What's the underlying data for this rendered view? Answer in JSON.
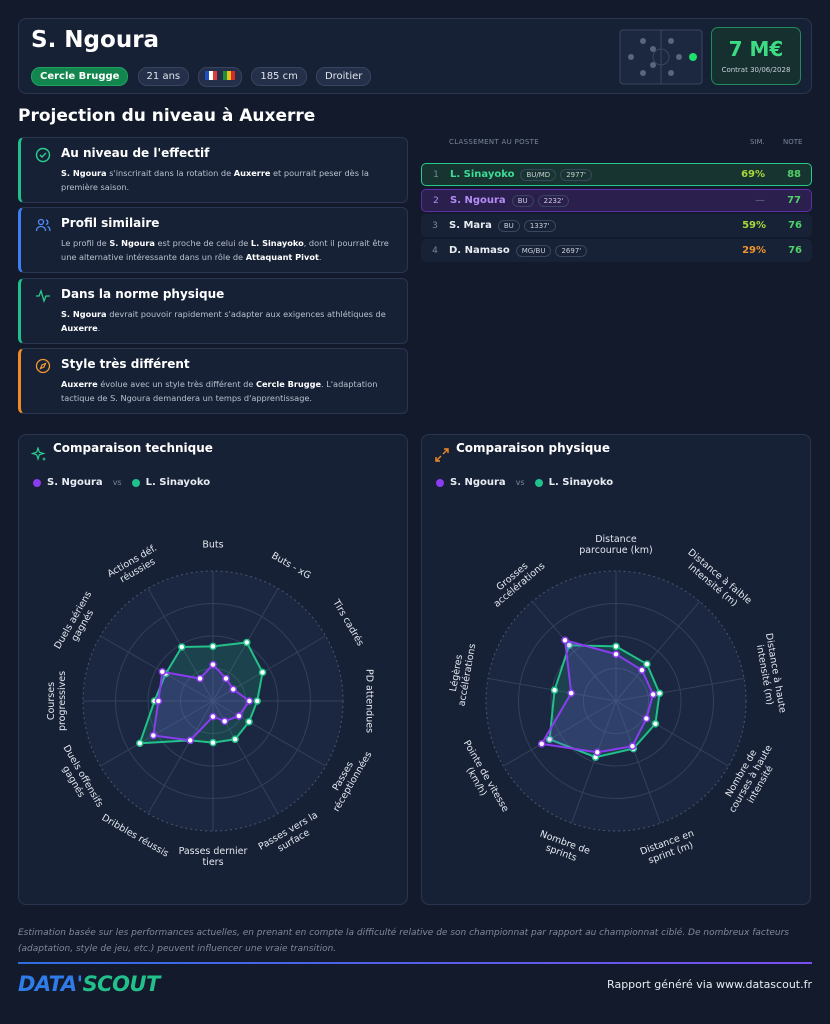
{
  "header": {
    "name": "S. Ngoura",
    "club": "Cercle Brugge",
    "age": "21 ans",
    "height": "185 cm",
    "foot": "Droitier",
    "value": "7 M€",
    "contract": "Contrat 30/06/2028"
  },
  "section_title": "Projection du niveau à Auxerre",
  "insights": [
    {
      "title": "Au niveau de l'effectif",
      "text": [
        "S. Ngoura",
        " s'inscrirait dans la rotation de ",
        "Auxerre",
        " et pourrait peser dès la première saison."
      ]
    },
    {
      "title": "Profil similaire",
      "text": [
        "Le profil de ",
        "S. Ngoura",
        " est proche de celui de ",
        "L. Sinayoko",
        ", dont il pourrait être une alternative intéressante dans un rôle de ",
        "Attaquant Pivot",
        "."
      ]
    },
    {
      "title": "Dans la norme physique",
      "text": [
        "S. Ngoura",
        " devrait pouvoir rapidement s'adapter aux exigences athlétiques de ",
        "Auxerre",
        "."
      ]
    },
    {
      "title": "Style très différent",
      "text": [
        "Auxerre",
        " évolue avec un style très différent de ",
        "Cercle Brugge",
        ". L'adaptation tactique de S. Ngoura demandera un temps d'apprentissage."
      ]
    }
  ],
  "ranking": {
    "header": [
      "CLASSEMENT AU POSTE",
      "SIM.",
      "NOTE"
    ],
    "rows": [
      [
        "1",
        "L. Sinayoko",
        "BU/MD",
        "2977'",
        "69%",
        "88"
      ],
      [
        "2",
        "S. Ngoura",
        "BU",
        "2232'",
        "—",
        "77"
      ],
      [
        "3",
        "S. Mara",
        "BU",
        "1337'",
        "59%",
        "76"
      ],
      [
        "4",
        "D. Namaso",
        "MG/BU",
        "2697'",
        "29%",
        "76"
      ]
    ]
  },
  "chart_data": [
    {
      "type": "radar",
      "title": "Comparaison technique",
      "vs": "vs",
      "categories": [
        "Buts",
        "Buts - xG",
        "Tirs cadrés",
        "PD attendues",
        "Passes réceptionnées",
        "Passes vers la surface",
        "Passes dernier tiers",
        "Dribbles réussis",
        "Duels offensifs gagnés",
        "Courses progressives",
        "Duels aériens gagnés",
        "Actions déf. réussies"
      ],
      "series": [
        {
          "name": "S. Ngoura",
          "color": "#8b3cf0",
          "values": [
            28,
            20,
            18,
            28,
            23,
            18,
            12,
            35,
            53,
            42,
            45,
            20
          ]
        },
        {
          "name": "L. Sinayoko",
          "color": "#22c08a",
          "values": [
            42,
            52,
            44,
            34,
            32,
            34,
            32,
            35,
            65,
            45,
            42,
            48
          ]
        }
      ],
      "rlim": [
        0,
        100
      ],
      "rticks": [
        25,
        50,
        75,
        100
      ]
    },
    {
      "type": "radar",
      "title": "Comparaison physique",
      "vs": "vs",
      "categories": [
        "Distance parcourue (km)",
        "Distance à faible intensité (m)",
        "Distance à haute intensité (m)",
        "Nombre de courses à haute intensité",
        "Distance en sprint (m)",
        "Nombre de sprints",
        "Pointe de vitesse (km/h)",
        "Légères accélérations",
        "Grosses accélérations"
      ],
      "series": [
        {
          "name": "S. Ngoura",
          "color": "#8b3cf0",
          "values": [
            36,
            31,
            29,
            27,
            37,
            42,
            66,
            35,
            61
          ]
        },
        {
          "name": "L. Sinayoko",
          "color": "#22c08a",
          "values": [
            42,
            37,
            34,
            35,
            39,
            46,
            59,
            48,
            56
          ]
        }
      ],
      "rlim": [
        0,
        100
      ],
      "rticks": [
        25,
        50,
        75,
        100
      ]
    }
  ],
  "footer": {
    "note": "Estimation basée sur les performances actuelles, en prenant en compte la difficulté relative de son championnat par rapport au championnat ciblé. De nombreux facteurs (adaptation, style de jeu, etc.) peuvent influencer une vraie transition.",
    "logo": [
      "DATA'",
      "SCOUT"
    ],
    "credit": "Rapport généré via www.datascout.fr"
  }
}
